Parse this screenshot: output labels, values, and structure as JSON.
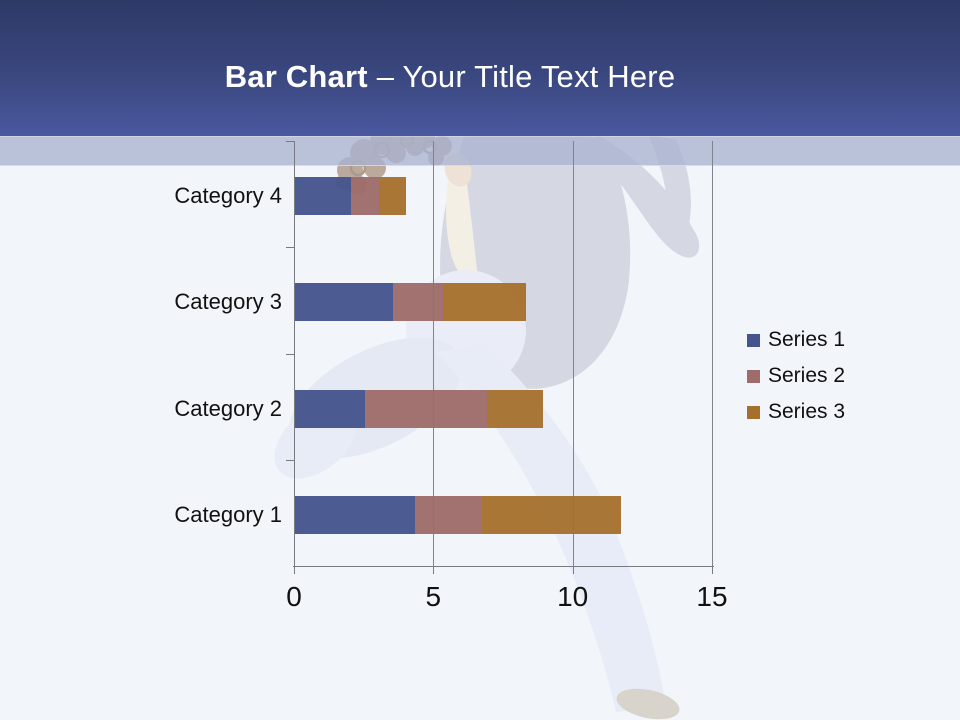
{
  "slide": {
    "title_bold": "Bar Chart",
    "title_rest": "– Your Title Text Here"
  },
  "colors": {
    "header_gradient_top": "#2D3966",
    "header_gradient_bottom": "#4A589F",
    "accent_strip": "#ABB3D1",
    "content_background": "#F2F5FA",
    "title_text": "#FFFFFF",
    "axis_line": "#777B80",
    "gridline": "#80848C",
    "label_text": "#111111",
    "series1": "#45548E",
    "series2": "#9E6C6A",
    "series3": "#A5702E"
  },
  "chart_data": {
    "type": "bar",
    "orientation": "horizontal",
    "stacked": true,
    "title": "",
    "categories": [
      "Category 1",
      "Category 2",
      "Category 3",
      "Category 4"
    ],
    "category_display_order_top_to_bottom": [
      "Category 4",
      "Category 3",
      "Category 2",
      "Category 1"
    ],
    "series": [
      {
        "name": "Series 1",
        "color": "#45548E",
        "values": [
          4.3,
          2.5,
          3.5,
          2
        ]
      },
      {
        "name": "Series 2",
        "color": "#9E6C6A",
        "values": [
          2.4,
          4.4,
          1.8,
          1
        ]
      },
      {
        "name": "Series 3",
        "color": "#A5702E",
        "values": [
          5,
          2,
          3,
          1
        ]
      }
    ],
    "xlim": [
      0,
      15
    ],
    "x_ticks": [
      0,
      5,
      10,
      15
    ],
    "grid": true,
    "legend_position": "right",
    "legend_labels": [
      "Series 1",
      "Series 2",
      "Series 3"
    ]
  }
}
